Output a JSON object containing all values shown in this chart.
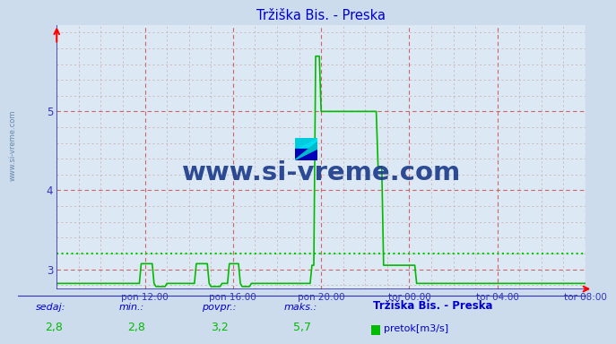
{
  "title": "Tržiška Bis. - Preska",
  "title_color": "#0000cc",
  "bg_color": "#ccdcec",
  "plot_bg_color": "#dce8f4",
  "line_color": "#00bb00",
  "avg_line_color": "#00cc00",
  "avg_value": 3.2,
  "axis_color": "#3333bb",
  "grid_color_major": "#cc6666",
  "grid_color_minor": "#c8a8a8",
  "x_tick_labels": [
    "pon 12:00",
    "pon 16:00",
    "pon 20:00",
    "tor 00:00",
    "tor 04:00",
    "tor 08:00"
  ],
  "x_tick_positions": [
    48,
    96,
    144,
    192,
    240,
    288
  ],
  "y_ticks": [
    3,
    4,
    5
  ],
  "ylim": [
    2.75,
    6.1
  ],
  "xlim": [
    0,
    288
  ],
  "footer_labels": [
    "sedaj:",
    "min.:",
    "povpr.:",
    "maks.:"
  ],
  "footer_values": [
    "2,8",
    "2,8",
    "3,2",
    "5,7"
  ],
  "footer_station": "Tržiška Bis. - Preska",
  "footer_legend": "pretok[m3/s]",
  "watermark": "www.si-vreme.com",
  "watermark_color": "#1a3a8a",
  "side_watermark": "www.si-vreme.com",
  "side_watermark_color": "#6688aa"
}
